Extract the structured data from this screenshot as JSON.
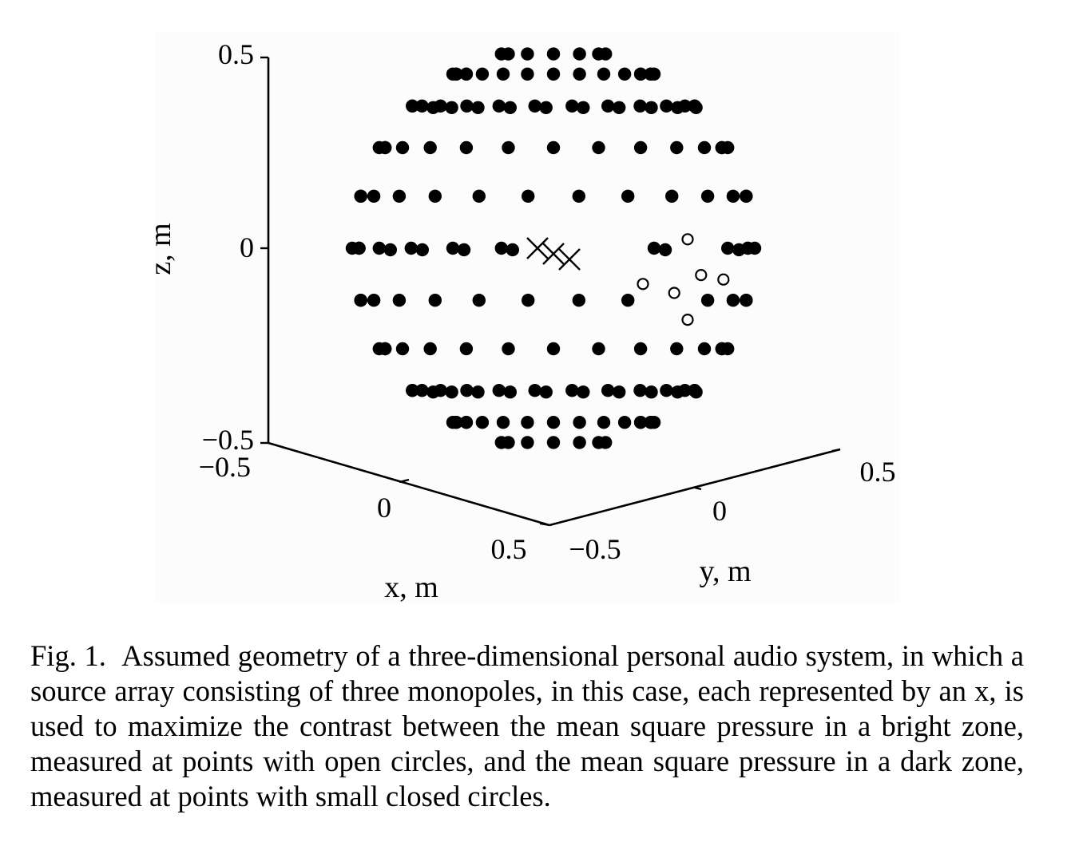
{
  "caption": {
    "label": "Fig. 1.",
    "text": "Assumed geometry of a three-dimensional personal audio system, in which a source array consisting of three monopoles, in this case, each represented by an x, is used to maximize the contrast between the mean square pressure in a bright zone, measured at points with open circles, and the mean square pressure in a dark zone, measured at points with small closed circles."
  },
  "chart_data": {
    "type": "scatter",
    "projection": "3d",
    "axes": {
      "x": {
        "label": "x, m",
        "range": [
          -0.5,
          0.5
        ],
        "ticks": [
          "−0.5",
          "0",
          "0.5"
        ]
      },
      "y": {
        "label": "y, m",
        "range": [
          -0.5,
          0.5
        ],
        "ticks": [
          "−0.5",
          "0",
          "0.5"
        ]
      },
      "z": {
        "label": "z, m",
        "range": [
          -0.5,
          0.5
        ],
        "ticks": [
          "−0.5",
          "0",
          "0.5"
        ]
      }
    },
    "sphere": {
      "center": [
        0,
        0,
        0
      ],
      "radius": 0.45
    },
    "elevation_rings_deg": [
      -60,
      -45,
      -30,
      -15,
      0,
      15,
      30,
      45,
      60
    ],
    "series": [
      {
        "marker": "x",
        "points": [
          [
            0,
            -0.05,
            0.0
          ],
          [
            0,
            0.0,
            0.0
          ],
          [
            0,
            0.05,
            0.0
          ]
        ]
      },
      {
        "marker": "open-circle",
        "points": [
          [
            0.05,
            0.3,
            0.02
          ],
          [
            0.05,
            0.33,
            -0.06
          ],
          [
            0.05,
            0.27,
            -0.1
          ],
          [
            0.05,
            0.3,
            -0.16
          ],
          [
            0.05,
            0.38,
            -0.07
          ],
          [
            0.05,
            0.2,
            -0.08
          ]
        ]
      },
      {
        "marker": "closed-circle",
        "points": "sphere surface grid: 9 elevation rings (−60° to 60° in 15° steps), azimuth spacing 15°, plus points at the poles"
      }
    ],
    "grid": false,
    "legend": "none"
  }
}
